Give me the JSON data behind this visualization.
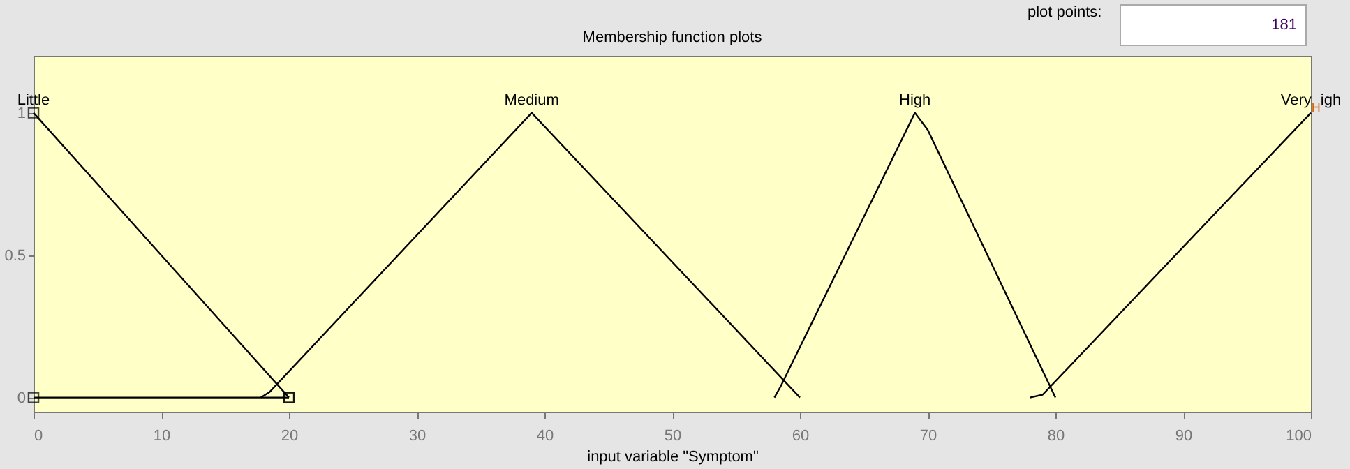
{
  "chart_data": {
    "type": "line",
    "title": "Membership function plots",
    "xlabel": "input variable \"Symptom\"",
    "annotations": [
      "plot points:",
      "181"
    ],
    "xlim": [
      0,
      100
    ],
    "ylim": [
      -0.05,
      1.2
    ],
    "xticks": [
      0,
      10,
      20,
      30,
      40,
      50,
      60,
      70,
      80,
      90,
      100
    ],
    "yticks": [
      0,
      0.5,
      1
    ],
    "grid": false,
    "legend": false,
    "series": [
      {
        "name": "Little",
        "color": "#000000",
        "marker": "square",
        "x": [
          0,
          20
        ],
        "values": [
          1,
          0
        ]
      },
      {
        "color": "#000000",
        "marker": "square",
        "x": [
          0,
          20
        ],
        "values": [
          0,
          0
        ]
      },
      {
        "name": "Medium",
        "color": "#000000",
        "x": [
          17.8,
          18.5,
          39,
          60
        ],
        "values": [
          0,
          0.02,
          1,
          0
        ]
      },
      {
        "name": "High",
        "color": "#000000",
        "x": [
          58,
          58.5,
          69,
          70,
          80
        ],
        "values": [
          0,
          0.04,
          1,
          0.94,
          0
        ]
      },
      {
        "name": "Very$_{H}$igh",
        "color": "#000000",
        "x": [
          78,
          79,
          100
        ],
        "values": [
          0,
          0.01,
          1
        ]
      }
    ]
  }
}
